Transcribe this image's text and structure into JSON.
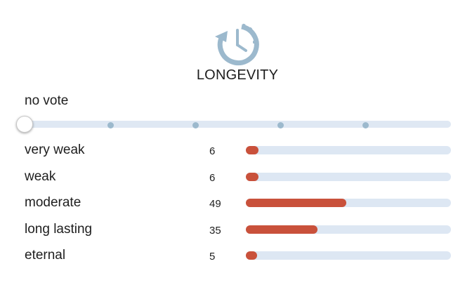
{
  "header": {
    "icon": "clock-history-icon",
    "title": "LONGEVITY"
  },
  "vote": {
    "label": "no vote",
    "slider_steps": 6,
    "selected_step": 0
  },
  "results": {
    "items": [
      {
        "label": "very weak",
        "count": "6",
        "share": 0.06
      },
      {
        "label": "weak",
        "count": "6",
        "share": 0.06
      },
      {
        "label": "moderate",
        "count": "49",
        "share": 0.49
      },
      {
        "label": "long lasting",
        "count": "35",
        "share": 0.35
      },
      {
        "label": "eternal",
        "count": "5",
        "share": 0.05
      }
    ]
  },
  "colors": {
    "accent_bar": "#c9513b",
    "track": "#dde7f3",
    "icon": "#9cb9cd"
  }
}
